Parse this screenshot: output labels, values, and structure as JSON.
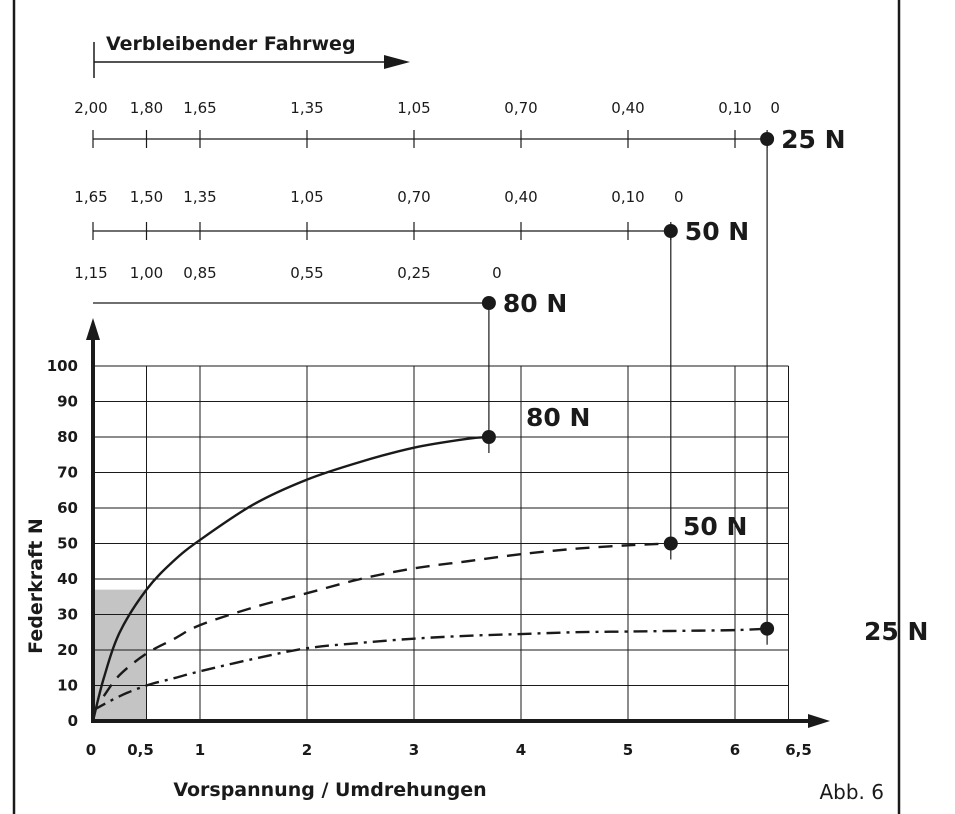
{
  "chart_data": {
    "type": "line",
    "title": "",
    "xlabel": "Vorspannung / Umdrehungen",
    "ylabel": "Federkraft N",
    "figure_label": "Abb. 6",
    "xlim": [
      0,
      6.5
    ],
    "ylim": [
      0,
      100
    ],
    "x_ticks": [
      {
        "v": 0,
        "label": "0"
      },
      {
        "v": 0.5,
        "label": "0,5"
      },
      {
        "v": 1,
        "label": "1"
      },
      {
        "v": 2,
        "label": "2"
      },
      {
        "v": 3,
        "label": "3"
      },
      {
        "v": 4,
        "label": "4"
      },
      {
        "v": 5,
        "label": "5"
      },
      {
        "v": 6,
        "label": "6"
      },
      {
        "v": 6.5,
        "label": "6,5"
      }
    ],
    "y_ticks": [
      {
        "v": 0,
        "label": "0"
      },
      {
        "v": 10,
        "label": "10"
      },
      {
        "v": 20,
        "label": "20"
      },
      {
        "v": 30,
        "label": "30"
      },
      {
        "v": 40,
        "label": "40"
      },
      {
        "v": 50,
        "label": "50"
      },
      {
        "v": 60,
        "label": "60"
      },
      {
        "v": 70,
        "label": "70"
      },
      {
        "v": 80,
        "label": "80"
      },
      {
        "v": 90,
        "label": "90"
      },
      {
        "v": 100,
        "label": "100"
      }
    ],
    "grid": true,
    "highlight_region": {
      "x": [
        0,
        0.5
      ],
      "y": [
        0,
        37
      ]
    },
    "series": [
      {
        "name": "80 N",
        "style": "solid",
        "x": [
          0,
          0.1,
          0.25,
          0.5,
          0.75,
          1.0,
          1.5,
          2.0,
          2.5,
          3.0,
          3.5,
          3.7
        ],
        "y": [
          0,
          12,
          25,
          37,
          45,
          51,
          61,
          68,
          73,
          77,
          79.5,
          80
        ],
        "endpoint": {
          "x": 3.7,
          "y": 80
        }
      },
      {
        "name": "50 N",
        "style": "dashed",
        "x": [
          0.1,
          0.25,
          0.5,
          0.75,
          1.0,
          1.5,
          2.0,
          2.5,
          3.0,
          3.5,
          4.0,
          4.5,
          5.0,
          5.4
        ],
        "y": [
          7,
          13,
          19,
          23,
          27,
          32,
          36,
          40,
          43,
          45,
          47,
          48.5,
          49.5,
          50
        ],
        "endpoint": {
          "x": 5.4,
          "y": 50
        }
      },
      {
        "name": "25 N",
        "style": "dash-dot",
        "x": [
          0,
          0.25,
          0.5,
          0.75,
          1.0,
          1.5,
          2.0,
          2.5,
          3.0,
          3.5,
          4.0,
          4.5,
          5.0,
          5.5,
          6.0,
          6.3
        ],
        "y": [
          3,
          7,
          10,
          12,
          14,
          17.5,
          20.5,
          22,
          23.2,
          24,
          24.5,
          25,
          25.2,
          25.4,
          25.6,
          26
        ],
        "endpoint": {
          "x": 6.3,
          "y": 26
        }
      }
    ],
    "travel_header": "Verbleibender Fahrweg",
    "travel_scales": [
      {
        "label": "25 N",
        "endpoint_x": 6.3,
        "ticks": [
          {
            "x": 0,
            "label": "2,00"
          },
          {
            "x": 0.5,
            "label": "1,80"
          },
          {
            "x": 1,
            "label": "1,65"
          },
          {
            "x": 2,
            "label": "1,35"
          },
          {
            "x": 3,
            "label": "1,05"
          },
          {
            "x": 4,
            "label": "0,70"
          },
          {
            "x": 5,
            "label": "0,40"
          },
          {
            "x": 6,
            "label": "0,10"
          },
          {
            "x": 6.3,
            "label": "0"
          }
        ]
      },
      {
        "label": "50 N",
        "endpoint_x": 5.4,
        "ticks": [
          {
            "x": 0,
            "label": "1,65"
          },
          {
            "x": 0.5,
            "label": "1,50"
          },
          {
            "x": 1,
            "label": "1,35"
          },
          {
            "x": 2,
            "label": "1,05"
          },
          {
            "x": 3,
            "label": "0,70"
          },
          {
            "x": 4,
            "label": "0,40"
          },
          {
            "x": 5,
            "label": "0,10"
          },
          {
            "x": 5.4,
            "label": "0"
          }
        ]
      },
      {
        "label": "80 N",
        "endpoint_x": 3.7,
        "ticks": [
          {
            "x": 0,
            "label": "1,15"
          },
          {
            "x": 0.5,
            "label": "1,00"
          },
          {
            "x": 1,
            "label": "0,85"
          },
          {
            "x": 2,
            "label": "0,55"
          },
          {
            "x": 3,
            "label": "0,25"
          },
          {
            "x": 3.7,
            "label": "0"
          }
        ]
      }
    ]
  }
}
